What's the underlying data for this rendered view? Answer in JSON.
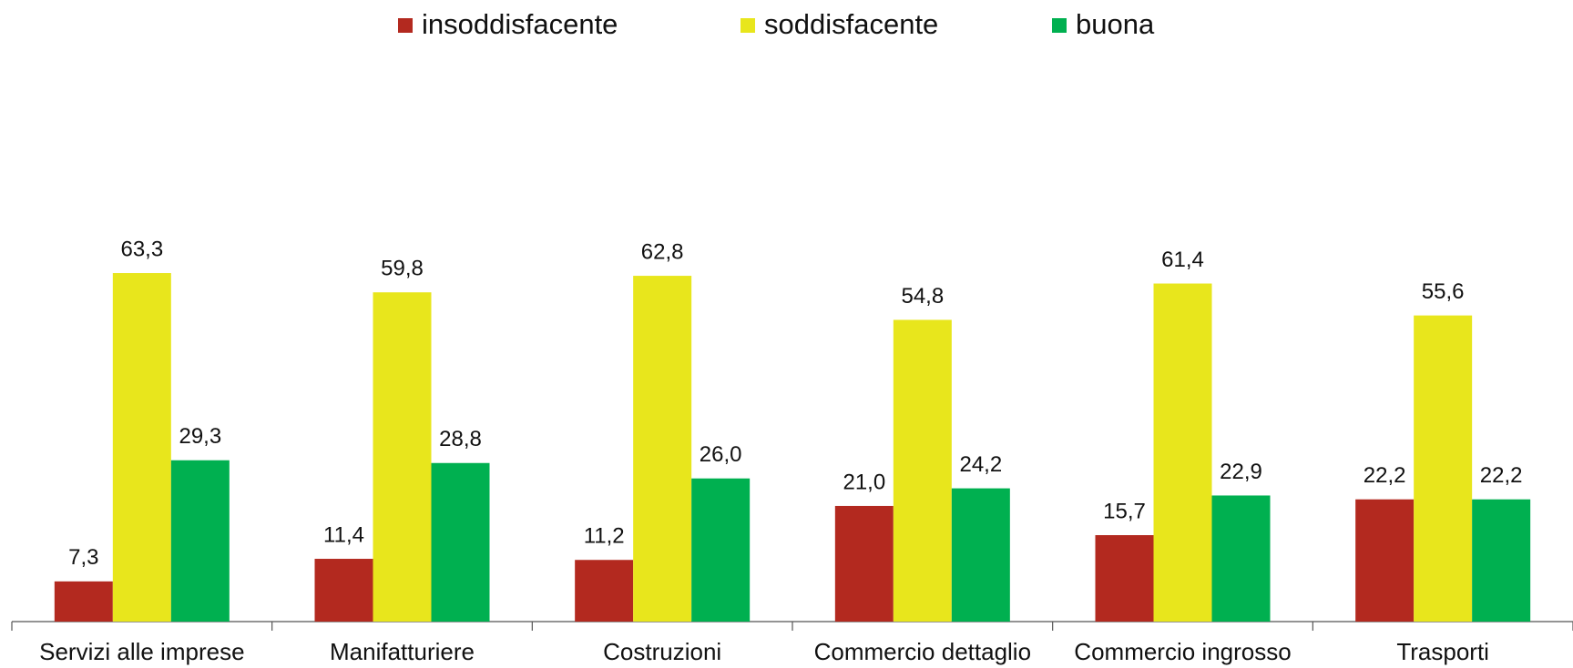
{
  "chart_data": {
    "type": "bar",
    "categories": [
      "Servizi alle imprese",
      "Manifatturiere",
      "Costruzioni",
      "Commercio dettaglio",
      "Commercio ingrosso",
      "Trasporti"
    ],
    "series": [
      {
        "name": "insoddisfacente",
        "color": "#b3291f",
        "values": [
          7.3,
          11.4,
          11.2,
          21.0,
          15.7,
          22.2
        ],
        "value_labels": [
          "7,3",
          "11,4",
          "11,2",
          "21,0",
          "15,7",
          "22,2"
        ]
      },
      {
        "name": "soddisfacente",
        "color": "#e8e61c",
        "values": [
          63.3,
          59.8,
          62.8,
          54.8,
          61.4,
          55.6
        ],
        "value_labels": [
          "63,3",
          "59,8",
          "62,8",
          "54,8",
          "61,4",
          "55,6"
        ]
      },
      {
        "name": "buona",
        "color": "#00b050",
        "values": [
          29.3,
          28.8,
          26.0,
          24.2,
          22.9,
          22.2
        ],
        "value_labels": [
          "29,3",
          "28,8",
          "26,0",
          "24,2",
          "22,9",
          "22,2"
        ]
      }
    ],
    "legend": "top"
  }
}
